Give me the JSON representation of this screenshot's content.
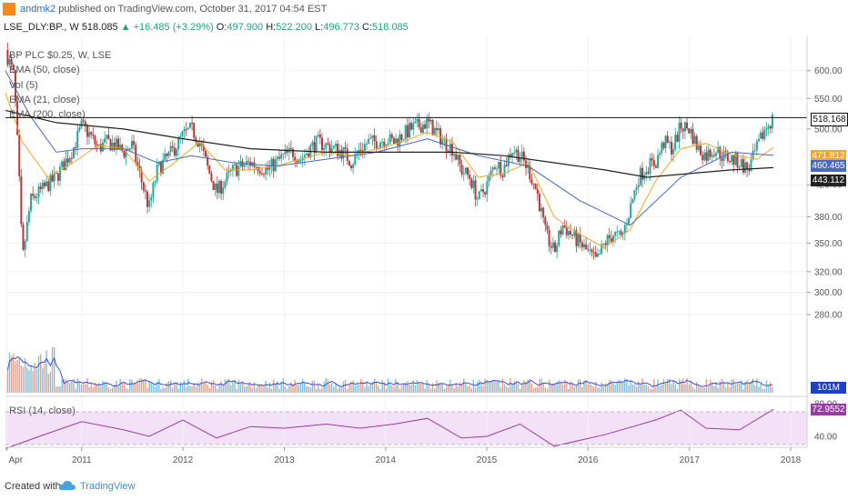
{
  "header": {
    "user": "andmk2",
    "published": "published on TradingView.com, October 31, 2017 04:54 EST"
  },
  "quote": {
    "symbol": "LSE_DLY:BP., W",
    "last": "518.085",
    "change": "+16.485 (+3.29%)",
    "open_label": "O:",
    "open": "497.900",
    "high_label": "H:",
    "high": "522.200",
    "low_label": "L:",
    "low": "496.773",
    "close_label": "C:",
    "close": "518.085"
  },
  "indicators": {
    "title": "BP PLC $0.25, W, LSE",
    "ema50": "EMA (50, close)",
    "vol": "Vol (5)",
    "ema21": "EMA (21, close)",
    "ema200": "EMA (200, close)",
    "rsi": "RSI (14, close)"
  },
  "price_tags": {
    "last": "518.168",
    "ema21": "471.812",
    "ema50": "460.465",
    "ema200": "443.112",
    "volume": "101M",
    "rsi": "72.9552"
  },
  "colors": {
    "up": "#26a69a",
    "down": "#b33a3a",
    "ema21": "#f5a623",
    "ema50": "#4a69bd",
    "ema200": "#222222",
    "rsi": "#9b3aa6",
    "rsi_band": "#f3e2f7"
  },
  "footer": {
    "created_with": "Created with",
    "brand": "TradingView"
  },
  "chart_data": {
    "type": "candlestick",
    "interval": "W",
    "x_ticks": [
      "Apr",
      "2011",
      "2012",
      "2013",
      "2014",
      "2015",
      "2016",
      "2017",
      "2018"
    ],
    "y_ticks": [
      600,
      550,
      500,
      420,
      380,
      350,
      320,
      300,
      280
    ],
    "ylim": [
      260,
      640
    ],
    "y_scale": "log",
    "resistance_level": 518.168,
    "rsi_ticks": [
      80,
      40
    ],
    "rsi_band": [
      30,
      70
    ],
    "close_path": [
      [
        "2010-04",
        640
      ],
      [
        "2010-05",
        590
      ],
      [
        "2010-06",
        330
      ],
      [
        "2010-07",
        400
      ],
      [
        "2010-08",
        410
      ],
      [
        "2010-09",
        420
      ],
      [
        "2010-10",
        430
      ],
      [
        "2010-11",
        450
      ],
      [
        "2010-12",
        470
      ],
      [
        "2011-01",
        505
      ],
      [
        "2011-02",
        490
      ],
      [
        "2011-03",
        470
      ],
      [
        "2011-04",
        480
      ],
      [
        "2011-05",
        475
      ],
      [
        "2011-06",
        465
      ],
      [
        "2011-07",
        475
      ],
      [
        "2011-08",
        430
      ],
      [
        "2011-09",
        390
      ],
      [
        "2011-10",
        440
      ],
      [
        "2011-11",
        455
      ],
      [
        "2011-12",
        470
      ],
      [
        "2012-01",
        490
      ],
      [
        "2012-02",
        500
      ],
      [
        "2012-03",
        480
      ],
      [
        "2012-04",
        440
      ],
      [
        "2012-05",
        410
      ],
      [
        "2012-06",
        425
      ],
      [
        "2012-07",
        440
      ],
      [
        "2012-08",
        445
      ],
      [
        "2012-09",
        450
      ],
      [
        "2012-10",
        445
      ],
      [
        "2012-11",
        440
      ],
      [
        "2012-12",
        450
      ],
      [
        "2013-01",
        460
      ],
      [
        "2013-02",
        465
      ],
      [
        "2013-03",
        455
      ],
      [
        "2013-04",
        470
      ],
      [
        "2013-05",
        480
      ],
      [
        "2013-06",
        475
      ],
      [
        "2013-07",
        470
      ],
      [
        "2013-08",
        465
      ],
      [
        "2013-09",
        450
      ],
      [
        "2013-10",
        470
      ],
      [
        "2013-11",
        480
      ],
      [
        "2013-12",
        480
      ],
      [
        "2014-01",
        485
      ],
      [
        "2014-02",
        480
      ],
      [
        "2014-03",
        490
      ],
      [
        "2014-04",
        500
      ],
      [
        "2014-05",
        505
      ],
      [
        "2014-06",
        510
      ],
      [
        "2014-07",
        495
      ],
      [
        "2014-08",
        480
      ],
      [
        "2014-09",
        470
      ],
      [
        "2014-10",
        440
      ],
      [
        "2014-11",
        430
      ],
      [
        "2014-12",
        400
      ],
      [
        "2015-01",
        420
      ],
      [
        "2015-02",
        450
      ],
      [
        "2015-03",
        440
      ],
      [
        "2015-04",
        470
      ],
      [
        "2015-05",
        460
      ],
      [
        "2015-06",
        440
      ],
      [
        "2015-07",
        410
      ],
      [
        "2015-08",
        360
      ],
      [
        "2015-09",
        340
      ],
      [
        "2015-10",
        370
      ],
      [
        "2015-11",
        360
      ],
      [
        "2015-12",
        350
      ],
      [
        "2016-01",
        340
      ],
      [
        "2016-02",
        330
      ],
      [
        "2016-03",
        350
      ],
      [
        "2016-04",
        360
      ],
      [
        "2016-05",
        355
      ],
      [
        "2016-06",
        390
      ],
      [
        "2016-07",
        430
      ],
      [
        "2016-08",
        445
      ],
      [
        "2016-09",
        450
      ],
      [
        "2016-10",
        480
      ],
      [
        "2016-11",
        470
      ],
      [
        "2016-12",
        505
      ],
      [
        "2017-01",
        500
      ],
      [
        "2017-02",
        470
      ],
      [
        "2017-03",
        460
      ],
      [
        "2017-04",
        470
      ],
      [
        "2017-05",
        460
      ],
      [
        "2017-06",
        455
      ],
      [
        "2017-07",
        450
      ],
      [
        "2017-08",
        440
      ],
      [
        "2017-09",
        470
      ],
      [
        "2017-10",
        500
      ],
      [
        "2017-10-31",
        518
      ]
    ],
    "series": [
      {
        "name": "EMA (21, close)",
        "values": [
          [
            "2010-04",
            560
          ],
          [
            "2010-06",
            480
          ],
          [
            "2010-09",
            430
          ],
          [
            "2010-12",
            450
          ],
          [
            "2011-03",
            475
          ],
          [
            "2011-06",
            470
          ],
          [
            "2011-09",
            425
          ],
          [
            "2011-12",
            450
          ],
          [
            "2012-03",
            480
          ],
          [
            "2012-06",
            440
          ],
          [
            "2012-09",
            440
          ],
          [
            "2012-12",
            445
          ],
          [
            "2013-03",
            455
          ],
          [
            "2013-06",
            465
          ],
          [
            "2013-09",
            460
          ],
          [
            "2013-12",
            470
          ],
          [
            "2014-03",
            480
          ],
          [
            "2014-06",
            495
          ],
          [
            "2014-09",
            480
          ],
          [
            "2014-12",
            430
          ],
          [
            "2015-03",
            435
          ],
          [
            "2015-06",
            450
          ],
          [
            "2015-09",
            380
          ],
          [
            "2015-12",
            360
          ],
          [
            "2016-03",
            345
          ],
          [
            "2016-06",
            365
          ],
          [
            "2016-09",
            425
          ],
          [
            "2016-12",
            470
          ],
          [
            "2017-03",
            478
          ],
          [
            "2017-06",
            462
          ],
          [
            "2017-09",
            455
          ],
          [
            "2017-10-31",
            471.812
          ]
        ]
      },
      {
        "name": "EMA (50, close)",
        "values": [
          [
            "2010-04",
            600
          ],
          [
            "2010-07",
            520
          ],
          [
            "2010-10",
            465
          ],
          [
            "2011-01",
            470
          ],
          [
            "2011-06",
            470
          ],
          [
            "2011-10",
            450
          ],
          [
            "2012-02",
            460
          ],
          [
            "2012-07",
            450
          ],
          [
            "2012-12",
            445
          ],
          [
            "2013-06",
            455
          ],
          [
            "2013-12",
            465
          ],
          [
            "2014-06",
            485
          ],
          [
            "2014-12",
            460
          ],
          [
            "2015-06",
            445
          ],
          [
            "2015-12",
            400
          ],
          [
            "2016-06",
            370
          ],
          [
            "2016-12",
            430
          ],
          [
            "2017-06",
            465
          ],
          [
            "2017-10-31",
            460.465
          ]
        ]
      },
      {
        "name": "EMA (200, close)",
        "values": [
          [
            "2010-04",
            530
          ],
          [
            "2010-10",
            510
          ],
          [
            "2011-06",
            500
          ],
          [
            "2012-01",
            485
          ],
          [
            "2012-09",
            470
          ],
          [
            "2013-06",
            465
          ],
          [
            "2014-03",
            465
          ],
          [
            "2014-09",
            465
          ],
          [
            "2015-03",
            460
          ],
          [
            "2015-09",
            450
          ],
          [
            "2016-03",
            440
          ],
          [
            "2016-08",
            430
          ],
          [
            "2017-01",
            435
          ],
          [
            "2017-06",
            440
          ],
          [
            "2017-10-31",
            443.112
          ]
        ]
      },
      {
        "name": "RSI (14, close)",
        "values": [
          [
            "2010-04",
            25
          ],
          [
            "2010-08",
            40
          ],
          [
            "2011-01",
            58
          ],
          [
            "2011-06",
            48
          ],
          [
            "2011-09",
            40
          ],
          [
            "2012-01",
            60
          ],
          [
            "2012-05",
            38
          ],
          [
            "2012-09",
            52
          ],
          [
            "2013-01",
            50
          ],
          [
            "2013-06",
            55
          ],
          [
            "2013-10",
            50
          ],
          [
            "2014-02",
            55
          ],
          [
            "2014-06",
            62
          ],
          [
            "2014-10",
            38
          ],
          [
            "2015-01",
            40
          ],
          [
            "2015-05",
            55
          ],
          [
            "2015-09",
            28
          ],
          [
            "2015-12",
            35
          ],
          [
            "2016-03",
            42
          ],
          [
            "2016-09",
            60
          ],
          [
            "2016-12",
            72
          ],
          [
            "2017-03",
            50
          ],
          [
            "2017-07",
            48
          ],
          [
            "2017-10-31",
            72.9552
          ]
        ]
      }
    ]
  }
}
